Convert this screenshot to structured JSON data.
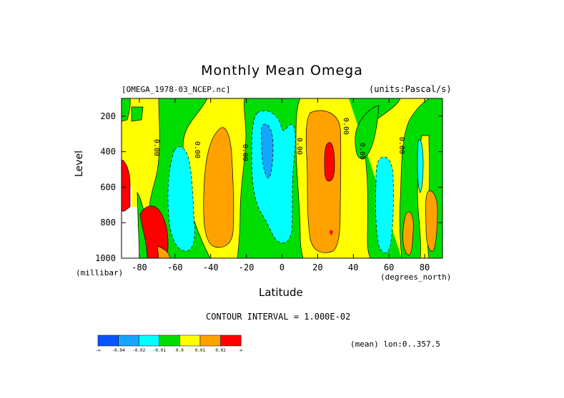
{
  "chart_data": {
    "type": "heatmap",
    "title": "Monthly Mean Omega",
    "subtitle_left": "[OMEGA_1978-03_NCEP.nc]",
    "subtitle_right": "(units:Pascal/s)",
    "xlabel": "Latitude",
    "xunit": "(degrees_north)",
    "ylabel": "Level",
    "yunit": "(millibar)",
    "xlim": [
      -90,
      90
    ],
    "ylim": [
      1000,
      100
    ],
    "x_ticks": [
      -80,
      -60,
      -40,
      -20,
      0,
      20,
      40,
      60,
      80
    ],
    "y_ticks": [
      200,
      400,
      600,
      800,
      1000
    ],
    "contour_interval_text": "CONTOUR INTERVAL = 1.000E-02",
    "contour_labels": [
      "0.00",
      "0.00",
      "0.00",
      "0.00",
      "0.00",
      "0.00",
      "0.00"
    ],
    "mean_text": "(mean) lon:0..357.5",
    "colorbar": {
      "colors": [
        "#0a55ff",
        "#14a5ff",
        "#00ffff",
        "#00dd00",
        "#ffff00",
        "#ffa200",
        "#ff0000"
      ],
      "labels": [
        "-∞",
        "-0.04",
        "-0.02",
        "-0.01",
        "0.0",
        "0.01",
        "0.02",
        "∞"
      ]
    },
    "regions": [
      {
        "lat": [
          -90,
          -80
        ],
        "lev": [
          100,
          320
        ],
        "value": "0 to 0.01",
        "color": "#ffff00"
      },
      {
        "lat": [
          -90,
          -86
        ],
        "lev": [
          420,
          1000
        ],
        "value": ">0.02",
        "color": "#ff0000"
      },
      {
        "lat": [
          -62,
          -44
        ],
        "lev": [
          100,
          220
        ],
        "value": "-0.01 to 0",
        "color": "#00dd00"
      },
      {
        "lat": [
          -62,
          -48
        ],
        "lev": [
          360,
          960
        ],
        "value": "-0.02 to -0.01",
        "color": "#00ffff"
      },
      {
        "lat": [
          -42,
          -30
        ],
        "lev": [
          300,
          920
        ],
        "value": "0.01 to 0.02",
        "color": "#ffa200"
      },
      {
        "lat": [
          -18,
          8
        ],
        "lev": [
          120,
          1000
        ],
        "value": "-0.01 to 0",
        "color": "#00dd00"
      },
      {
        "lat": [
          -13,
          0
        ],
        "lev": [
          160,
          860
        ],
        "value": "-0.02 to -0.01",
        "color": "#00ffff"
      },
      {
        "lat": [
          -11,
          -6
        ],
        "lev": [
          270,
          470
        ],
        "value": "-0.04 to -0.02",
        "color": "#14a5ff"
      },
      {
        "lat": [
          10,
          30
        ],
        "lev": [
          160,
          960
        ],
        "value": "0.01 to 0.02",
        "color": "#ffa200"
      },
      {
        "lat": [
          23,
          27
        ],
        "lev": [
          380,
          560
        ],
        "value": ">0.02",
        "color": "#ff0000"
      },
      {
        "lat": [
          42,
          60
        ],
        "lev": [
          100,
          1000
        ],
        "value": "-0.01 to 0",
        "color": "#00dd00"
      },
      {
        "lat": [
          52,
          62
        ],
        "lev": [
          420,
          960
        ],
        "value": "-0.02 to -0.01",
        "color": "#00ffff"
      },
      {
        "lat": [
          76,
          90
        ],
        "lev": [
          100,
          980
        ],
        "value": "-0.01 to 0",
        "color": "#00dd00"
      }
    ]
  }
}
